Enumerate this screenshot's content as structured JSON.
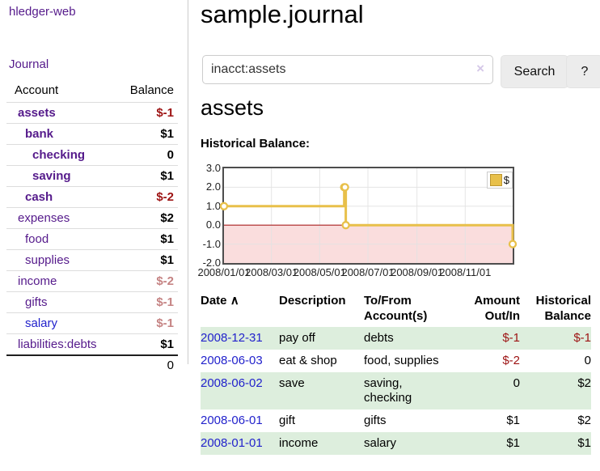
{
  "brand": "hledger-web",
  "nav": {
    "journal": "Journal"
  },
  "sidebar": {
    "col_account": "Account",
    "col_balance": "Balance",
    "accounts": [
      {
        "name": "assets",
        "depth": 1,
        "emph": true,
        "balance": "$-1",
        "balance_style": "neg"
      },
      {
        "name": "bank",
        "depth": 2,
        "emph": true,
        "balance": "$1",
        "balance_style": ""
      },
      {
        "name": "checking",
        "depth": 3,
        "emph": true,
        "balance": "0",
        "balance_style": ""
      },
      {
        "name": "saving",
        "depth": 3,
        "emph": true,
        "balance": "$1",
        "balance_style": ""
      },
      {
        "name": "cash",
        "depth": 2,
        "emph": true,
        "balance": "$-2",
        "balance_style": "neg"
      },
      {
        "name": "expenses",
        "depth": 1,
        "emph": false,
        "balance": "$2",
        "balance_style": ""
      },
      {
        "name": "food",
        "depth": 2,
        "emph": false,
        "balance": "$1",
        "balance_style": ""
      },
      {
        "name": "supplies",
        "depth": 2,
        "emph": false,
        "balance": "$1",
        "balance_style": ""
      },
      {
        "name": "income",
        "depth": 1,
        "emph": false,
        "balance": "$-2",
        "balance_style": "neg-faded"
      },
      {
        "name": "gifts",
        "depth": 2,
        "emph": false,
        "balance": "$-1",
        "balance_style": "neg-faded"
      },
      {
        "name": "salary",
        "depth": 2,
        "emph": false,
        "link_color": "blue",
        "balance": "$-1",
        "balance_style": "neg-faded"
      },
      {
        "name": "liabilities:debts",
        "depth": 1,
        "emph": false,
        "balance": "$1",
        "balance_style": ""
      }
    ],
    "total": "0"
  },
  "header": {
    "title": "sample.journal",
    "search": {
      "value": "inacct:assets",
      "clear_icon": "×",
      "search_button": "Search",
      "help_button": "?"
    }
  },
  "account_page": {
    "heading": "assets",
    "chart_title": "Historical Balance:"
  },
  "chart_data": {
    "type": "line",
    "step": true,
    "title": "Historical Balance:",
    "xlabel": "",
    "ylabel": "",
    "ylim": [
      -2.0,
      3.0
    ],
    "yticks": [
      "3.0",
      "2.0",
      "1.0",
      "0.0",
      "-1.0",
      "-2.0"
    ],
    "xticks": [
      "2008/01/01",
      "2008/03/01",
      "2008/05/01",
      "2008/07/01",
      "2008/09/01",
      "2008/11/01"
    ],
    "grid": true,
    "legend": {
      "label": "$",
      "position": "top-right"
    },
    "series": [
      {
        "name": "$",
        "points": [
          {
            "date": "2008-01-01",
            "value": 1
          },
          {
            "date": "2008-06-01",
            "value": 2
          },
          {
            "date": "2008-06-02",
            "value": 2
          },
          {
            "date": "2008-06-03",
            "value": 0
          },
          {
            "date": "2008-12-31",
            "value": -1
          }
        ]
      }
    ]
  },
  "register": {
    "sort_icon": "∧",
    "columns": [
      "Date",
      "Description",
      "To/From Account(s)",
      "Amount Out/In",
      "Historical Balance"
    ],
    "rows": [
      {
        "date": "2008-12-31",
        "description": "pay off",
        "accounts": "debts",
        "amount": "$-1",
        "balance": "$-1"
      },
      {
        "date": "2008-06-03",
        "description": "eat & shop",
        "accounts": "food, supplies",
        "amount": "$-2",
        "balance": "0"
      },
      {
        "date": "2008-06-02",
        "description": "save",
        "accounts": "saving, checking",
        "amount": "0",
        "balance": "$2"
      },
      {
        "date": "2008-06-01",
        "description": "gift",
        "accounts": "gifts",
        "amount": "$1",
        "balance": "$2"
      },
      {
        "date": "2008-01-01",
        "description": "income",
        "accounts": "salary",
        "amount": "$1",
        "balance": "$1"
      }
    ]
  },
  "colors": {
    "purple": "#551a8b",
    "blue": "#2222cc",
    "neg": "#9d1313",
    "neg_faded": "#c58383",
    "row_green": "#ddeedd",
    "chart_line": "#e8c04a",
    "chart_neg_bg": "#fadddd",
    "chart_zero": "#aa2222",
    "button_bg": "#ececec"
  }
}
